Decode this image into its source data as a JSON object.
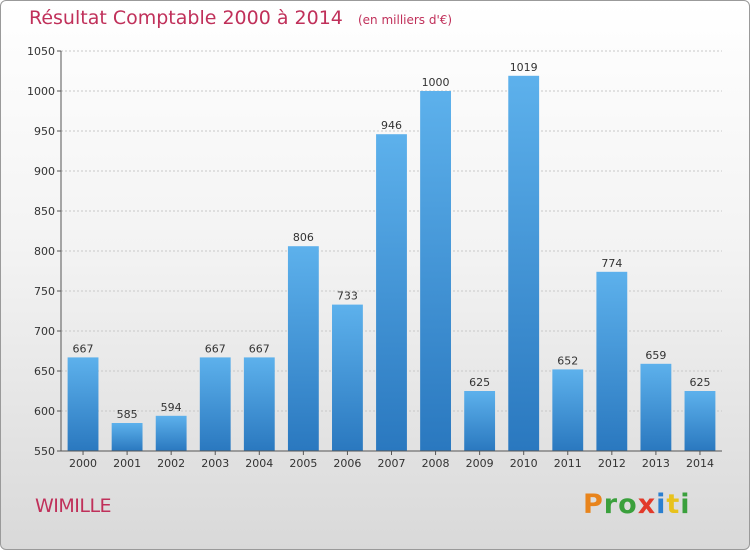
{
  "chart_data": {
    "type": "bar",
    "title": "Résultat Comptable 2000 à 2014",
    "subtitle": "(en milliers d'€)",
    "xlabel": "",
    "ylabel": "",
    "categories": [
      "2000",
      "2001",
      "2002",
      "2003",
      "2004",
      "2005",
      "2006",
      "2007",
      "2008",
      "2009",
      "2010",
      "2011",
      "2012",
      "2013",
      "2014"
    ],
    "values": [
      667,
      585,
      594,
      667,
      667,
      806,
      733,
      946,
      1000,
      625,
      1019,
      652,
      774,
      659,
      625
    ],
    "ylim": [
      550,
      1050
    ],
    "yticks": [
      550,
      600,
      650,
      700,
      750,
      800,
      850,
      900,
      950,
      1000,
      1050
    ],
    "grid": true,
    "bar_color": "#3a92d8"
  },
  "footer": {
    "commune": "WIMILLE",
    "brand": [
      "P",
      "r",
      "o",
      "x",
      "i",
      "t",
      "i"
    ],
    "brand_colors": [
      "#e8841c",
      "#3aa03c",
      "#3aa03c",
      "#e23a2a",
      "#2a7fd0",
      "#e8c21c",
      "#3aa03c"
    ]
  }
}
